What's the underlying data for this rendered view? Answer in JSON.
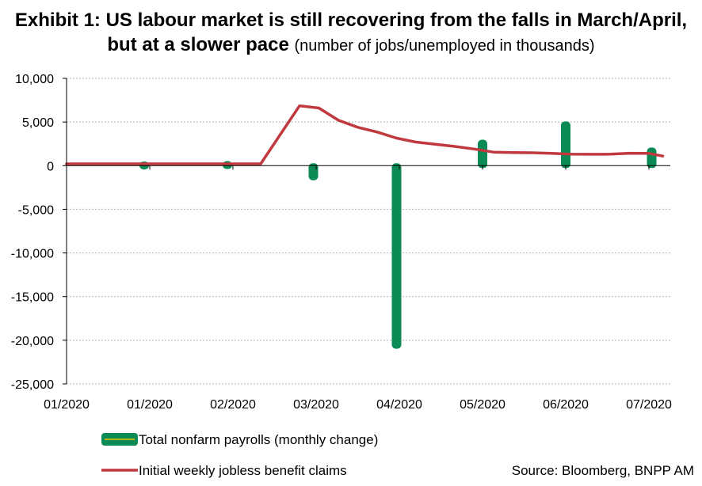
{
  "title": {
    "line1": "Exhibit 1: US labour market is still recovering from the falls in March/April,",
    "line2_bold": "but at a slower pace",
    "line2_sub": "(number of jobs/unemployed  in thousands)"
  },
  "source": "Source: Bloomberg, BNPP AM",
  "colors": {
    "payrolls": "#0a8a55",
    "claims": "#c0393f",
    "grid": "#b0b0b0"
  },
  "chart_data": {
    "type": "bar+line",
    "ylim": [
      -25000,
      10000
    ],
    "yticks": [
      10000,
      5000,
      0,
      -5000,
      -10000,
      -15000,
      -20000,
      -25000
    ],
    "ytick_labels": [
      "10,000",
      "5,000",
      "0",
      "-5,000",
      "-10,000",
      "-15,000",
      "-20,000",
      "-25,000"
    ],
    "xlim_days": [
      0,
      225
    ],
    "xticks_days": [
      0,
      30,
      60,
      90,
      120,
      150,
      180,
      210
    ],
    "xtick_labels": [
      "01/2020",
      "01/2020",
      "02/2020",
      "03/2020",
      "04/2020",
      "05/2020",
      "06/2020",
      "07/2020"
    ],
    "grid": "horizontal",
    "legend": "bottom-left",
    "series": [
      {
        "name": "Total nonfarm payrolls (monthly change)",
        "type": "bar",
        "points": [
          {
            "x": 28,
            "y": 200
          },
          {
            "x": 58,
            "y": 250
          },
          {
            "x": 89,
            "y": -1400
          },
          {
            "x": 119,
            "y": -20700
          },
          {
            "x": 150,
            "y": 2700
          },
          {
            "x": 180,
            "y": 4800
          },
          {
            "x": 211,
            "y": 1800
          }
        ]
      },
      {
        "name": "Initial weekly jobless benefit claims",
        "type": "line",
        "points": [
          {
            "x": 0,
            "y": 210
          },
          {
            "x": 70,
            "y": 210
          },
          {
            "x": 84,
            "y": 6850
          },
          {
            "x": 91,
            "y": 6600
          },
          {
            "x": 98,
            "y": 5200
          },
          {
            "x": 105,
            "y": 4400
          },
          {
            "x": 112,
            "y": 3850
          },
          {
            "x": 119,
            "y": 3150
          },
          {
            "x": 126,
            "y": 2700
          },
          {
            "x": 133,
            "y": 2450
          },
          {
            "x": 140,
            "y": 2200
          },
          {
            "x": 147,
            "y": 1900
          },
          {
            "x": 154,
            "y": 1550
          },
          {
            "x": 161,
            "y": 1500
          },
          {
            "x": 168,
            "y": 1480
          },
          {
            "x": 175,
            "y": 1400
          },
          {
            "x": 182,
            "y": 1310
          },
          {
            "x": 189,
            "y": 1300
          },
          {
            "x": 196,
            "y": 1310
          },
          {
            "x": 203,
            "y": 1420
          },
          {
            "x": 210,
            "y": 1400
          },
          {
            "x": 215,
            "y": 1100
          }
        ]
      }
    ]
  }
}
